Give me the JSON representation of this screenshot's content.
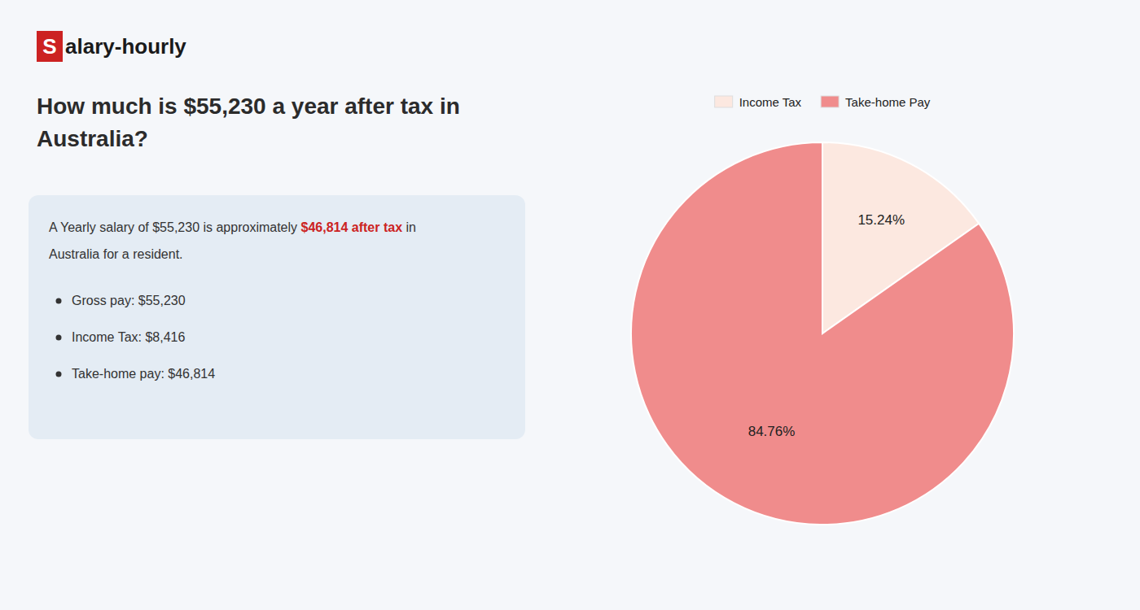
{
  "chart_data": {
    "type": "pie",
    "title": [
      "How much is $55,230 a year after tax in",
      "Australia?"
    ],
    "annotations": [
      {
        "text": "S",
        "color": "#ffffff"
      },
      {
        "text": "alary-hourly",
        "color": "#1a1a1a"
      },
      {
        "text": "A Yearly salary of $55,230 is approximately ",
        "color": "#333333"
      },
      {
        "text": "$46,814 after tax",
        "color": "#cc2222"
      },
      {
        "text": " in",
        "color": "#333333"
      },
      {
        "text": "Australia for a resident.",
        "color": "#333333"
      },
      {
        "text": "Gross pay: $55,230",
        "color": "#333333"
      },
      {
        "text": "Income Tax: $8,416",
        "color": "#333333"
      },
      {
        "text": "Take-home pay: $46,814",
        "color": "#333333"
      }
    ],
    "categories": [
      "Income Tax",
      "Take-home Pay"
    ],
    "values": [
      15.24,
      84.76
    ],
    "value_labels": [
      "15.24%",
      "84.76%"
    ],
    "colors": [
      "#fce8e0",
      "#f08c8c"
    ],
    "data_labels": true,
    "legend": "top"
  }
}
